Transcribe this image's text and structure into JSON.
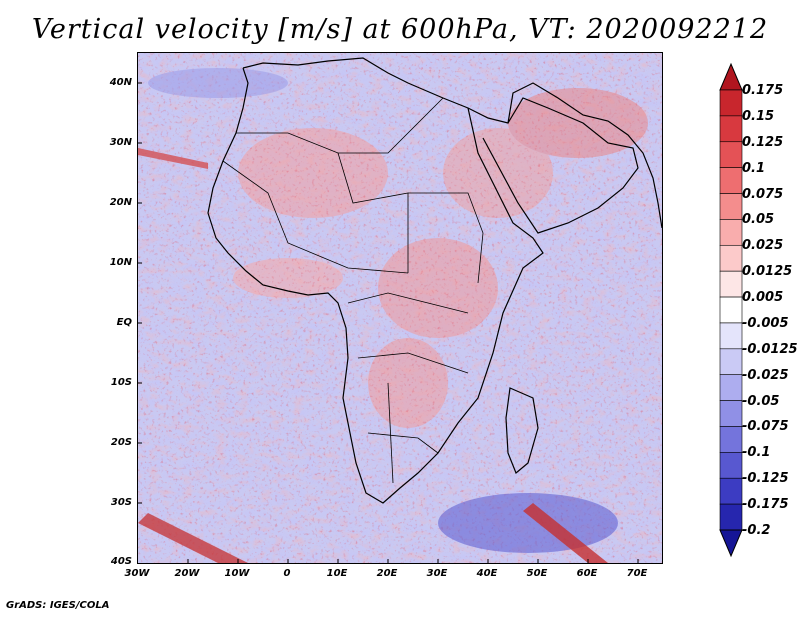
{
  "title": "Vertical velocity [m/s] at 600hPa, VT: 2020092212",
  "lat_labels": [
    "40N",
    "30N",
    "20N",
    "10N",
    "EQ",
    "10S",
    "20S",
    "30S",
    "40S"
  ],
  "lon_labels": [
    "30W",
    "20W",
    "10W",
    "0",
    "10E",
    "20E",
    "30E",
    "40E",
    "50E",
    "60E",
    "70E"
  ],
  "colorbar": {
    "labels": [
      "0.175",
      "0.15",
      "0.125",
      "0.1",
      "0.075",
      "0.05",
      "0.025",
      "0.0125",
      "0.005",
      "-0.005",
      "-0.0125",
      "-0.025",
      "-0.05",
      "-0.075",
      "-0.1",
      "-0.125",
      "-0.175",
      "-0.2"
    ],
    "colors": [
      "#b0151f",
      "#c8262d",
      "#d8393f",
      "#e45256",
      "#ee6e70",
      "#f48d8d",
      "#f9adad",
      "#fccaca",
      "#fde6e6",
      "#ffffff",
      "#e4e4fb",
      "#cacaf5",
      "#adadef",
      "#9090e6",
      "#7474dc",
      "#5858d0",
      "#3c3cc2",
      "#2626ae",
      "#151596"
    ]
  },
  "credit": "GrADS: IGES/COLA"
}
